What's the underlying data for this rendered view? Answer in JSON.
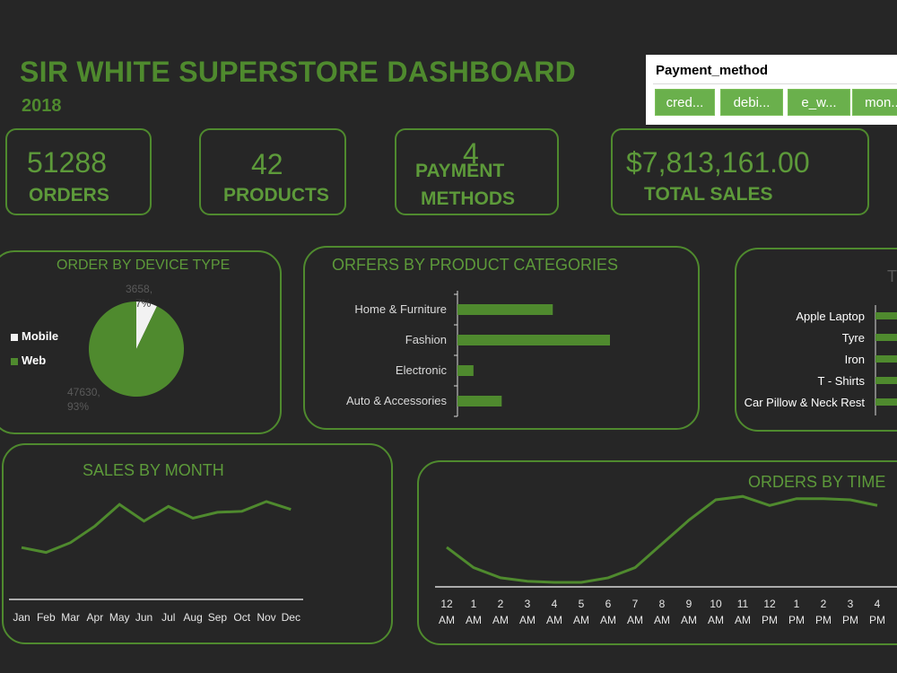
{
  "header": {
    "title": "SIR WHITE SUPERSTORE DASHBOARD",
    "year": "2018"
  },
  "slicer": {
    "title": "Payment_method",
    "buttons": [
      "cred...",
      "debi...",
      "e_w...",
      "mon..."
    ]
  },
  "kpis": {
    "orders": {
      "value": "51288",
      "label": "ORDERS"
    },
    "products": {
      "value": "42",
      "label": "PRODUCTS"
    },
    "payment_methods": {
      "value": "4",
      "label_line1": "PAYMENT",
      "label_line2": "METHODS"
    },
    "total_sales": {
      "value": "$7,813,161.00",
      "label": "TOTAL SALES"
    }
  },
  "device_chart": {
    "title": "ORDER BY DEVICE TYPE",
    "legend": [
      "Mobile",
      "Web"
    ],
    "mobile_label_line1": "3658,",
    "mobile_label_line2": "7%",
    "web_label_line1": "47630,",
    "web_label_line2": "93%",
    "colors": {
      "Mobile": "#f2f2f2",
      "Web": "#4f8a2e"
    }
  },
  "category_chart": {
    "title": "ORFERS BY PRODUCT CATEGORIES"
  },
  "top_products": {
    "title_fragment": "T"
  },
  "sales_month": {
    "title": "SALES BY MONTH"
  },
  "orders_time": {
    "title": "ORDERS BY TIME"
  },
  "chart_data": [
    {
      "type": "pie",
      "title": "ORDER BY DEVICE TYPE",
      "categories": [
        "Mobile",
        "Web"
      ],
      "values": [
        3658,
        47630
      ],
      "percent": [
        7,
        93
      ],
      "legend": "left"
    },
    {
      "type": "bar",
      "orientation": "horizontal",
      "title": "ORFERS BY PRODUCT CATEGORIES",
      "categories": [
        "Home & Furniture",
        "Fashion",
        "Electronic",
        "Auto & Accessories"
      ],
      "values": [
        12500,
        20000,
        2100,
        5800
      ],
      "xlim": [
        0,
        20000
      ]
    },
    {
      "type": "bar",
      "orientation": "horizontal",
      "title": "T",
      "categories": [
        "Apple Laptop",
        "Tyre",
        "Iron",
        "T - Shirts",
        "Car Pillow & Neck Rest"
      ],
      "values": [
        1,
        1,
        1,
        1,
        1
      ],
      "note_values_cropped": true
    },
    {
      "type": "line",
      "title": "SALES BY MONTH",
      "categories": [
        "Jan",
        "Feb",
        "Mar",
        "Apr",
        "May",
        "Jun",
        "Jul",
        "Aug",
        "Sep",
        "Oct",
        "Nov",
        "Dec"
      ],
      "values": [
        0.53,
        0.48,
        0.58,
        0.75,
        0.97,
        0.8,
        0.95,
        0.83,
        0.89,
        0.9,
        1.0,
        0.92
      ],
      "ylim": [
        0,
        1.1
      ]
    },
    {
      "type": "line",
      "title": "ORDERS BY TIME",
      "categories": [
        "12 AM",
        "1 AM",
        "2 AM",
        "3 AM",
        "4 AM",
        "5 AM",
        "6 AM",
        "7 AM",
        "8 AM",
        "9 AM",
        "10 AM",
        "11 AM",
        "12 PM",
        "1 PM",
        "2 PM",
        "3 PM",
        "4 PM"
      ],
      "categories_line1": [
        "12",
        "1",
        "2",
        "3",
        "4",
        "5",
        "6",
        "7",
        "8",
        "9",
        "10",
        "11",
        "12",
        "1",
        "2",
        "3",
        "4"
      ],
      "categories_line2": [
        "AM",
        "AM",
        "AM",
        "AM",
        "AM",
        "AM",
        "AM",
        "AM",
        "AM",
        "AM",
        "AM",
        "AM",
        "PM",
        "PM",
        "PM",
        "PM",
        "PM"
      ],
      "values": [
        0.35,
        0.17,
        0.08,
        0.05,
        0.04,
        0.04,
        0.08,
        0.17,
        0.38,
        0.59,
        0.77,
        0.8,
        0.72,
        0.78,
        0.78,
        0.77,
        0.72
      ],
      "ylim": [
        0,
        1
      ]
    }
  ]
}
